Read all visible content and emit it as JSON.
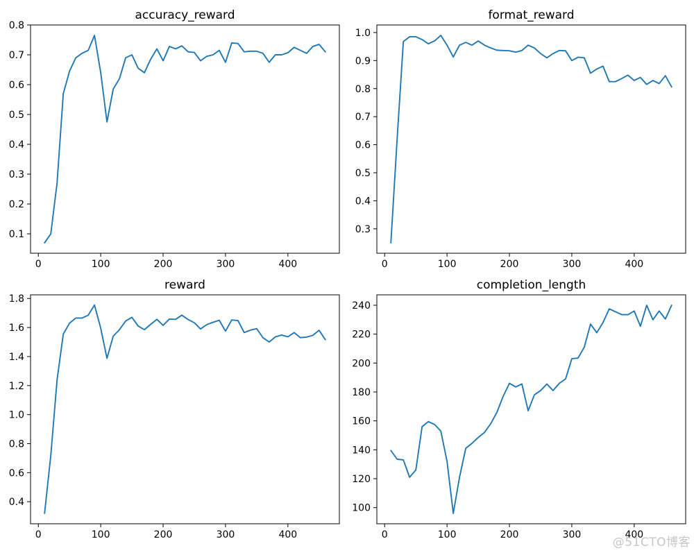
{
  "watermark": "@51CTO博客",
  "styles": {
    "line_color": "#1f77b4",
    "background": "#ffffff",
    "text_color": "#000000",
    "watermark_color": "#c6c6c6"
  },
  "chart_data": [
    {
      "type": "line",
      "title": "accuracy_reward",
      "xlabel": "",
      "ylabel": "",
      "grid": false,
      "legend": "none",
      "x": [
        10,
        20,
        30,
        40,
        50,
        60,
        70,
        80,
        90,
        100,
        110,
        120,
        130,
        140,
        150,
        160,
        170,
        180,
        190,
        200,
        210,
        220,
        230,
        240,
        250,
        260,
        270,
        280,
        290,
        300,
        310,
        320,
        330,
        340,
        350,
        360,
        370,
        380,
        390,
        400,
        410,
        420,
        430,
        440,
        450,
        460
      ],
      "values": [
        0.07,
        0.1,
        0.27,
        0.57,
        0.645,
        0.69,
        0.705,
        0.715,
        0.765,
        0.64,
        0.475,
        0.585,
        0.62,
        0.69,
        0.7,
        0.655,
        0.64,
        0.685,
        0.72,
        0.68,
        0.728,
        0.72,
        0.73,
        0.71,
        0.708,
        0.68,
        0.695,
        0.7,
        0.715,
        0.675,
        0.74,
        0.738,
        0.71,
        0.712,
        0.712,
        0.705,
        0.675,
        0.7,
        0.7,
        0.707,
        0.725,
        0.715,
        0.705,
        0.728,
        0.735,
        0.71
      ],
      "xlim": [
        -12.5,
        482.5
      ],
      "ylim": [
        0.035,
        0.8
      ],
      "xticks": [
        0,
        100,
        200,
        300,
        400
      ],
      "yticks": [
        0.1,
        0.2,
        0.3,
        0.4,
        0.5,
        0.6,
        0.7,
        0.8
      ],
      "ytick_decimals": 1
    },
    {
      "type": "line",
      "title": "format_reward",
      "xlabel": "",
      "ylabel": "",
      "grid": false,
      "legend": "none",
      "x": [
        10,
        20,
        30,
        40,
        50,
        60,
        70,
        80,
        90,
        100,
        110,
        120,
        130,
        140,
        150,
        160,
        170,
        180,
        190,
        200,
        210,
        220,
        230,
        240,
        250,
        260,
        270,
        280,
        290,
        300,
        310,
        320,
        330,
        340,
        350,
        360,
        370,
        380,
        390,
        400,
        410,
        420,
        430,
        440,
        450,
        460
      ],
      "values": [
        0.25,
        0.62,
        0.968,
        0.985,
        0.985,
        0.975,
        0.96,
        0.97,
        0.99,
        0.955,
        0.913,
        0.955,
        0.965,
        0.955,
        0.97,
        0.955,
        0.945,
        0.937,
        0.936,
        0.935,
        0.93,
        0.936,
        0.955,
        0.945,
        0.925,
        0.91,
        0.925,
        0.936,
        0.935,
        0.9,
        0.912,
        0.91,
        0.855,
        0.87,
        0.88,
        0.825,
        0.825,
        0.836,
        0.848,
        0.829,
        0.84,
        0.815,
        0.829,
        0.818,
        0.846,
        0.806
      ],
      "xlim": [
        -12.5,
        482.5
      ],
      "ylim": [
        0.213,
        1.027
      ],
      "xticks": [
        0,
        100,
        200,
        300,
        400
      ],
      "yticks": [
        0.3,
        0.4,
        0.5,
        0.6,
        0.7,
        0.8,
        0.9,
        1.0
      ],
      "ytick_decimals": 1
    },
    {
      "type": "line",
      "title": "reward",
      "xlabel": "",
      "ylabel": "",
      "grid": false,
      "legend": "none",
      "x": [
        10,
        20,
        30,
        40,
        50,
        60,
        70,
        80,
        90,
        100,
        110,
        120,
        130,
        140,
        150,
        160,
        170,
        180,
        190,
        200,
        210,
        220,
        230,
        240,
        250,
        260,
        270,
        280,
        290,
        300,
        310,
        320,
        330,
        340,
        350,
        360,
        370,
        380,
        390,
        400,
        410,
        420,
        430,
        440,
        450,
        460
      ],
      "values": [
        0.32,
        0.72,
        1.238,
        1.555,
        1.63,
        1.665,
        1.665,
        1.685,
        1.755,
        1.595,
        1.388,
        1.54,
        1.585,
        1.645,
        1.67,
        1.61,
        1.585,
        1.622,
        1.656,
        1.615,
        1.658,
        1.656,
        1.685,
        1.655,
        1.633,
        1.59,
        1.62,
        1.636,
        1.65,
        1.575,
        1.652,
        1.648,
        1.565,
        1.582,
        1.592,
        1.53,
        1.5,
        1.536,
        1.548,
        1.536,
        1.565,
        1.53,
        1.534,
        1.546,
        1.581,
        1.516
      ],
      "xlim": [
        -12.5,
        482.5
      ],
      "ylim": [
        0.248,
        1.825
      ],
      "xticks": [
        0,
        100,
        200,
        300,
        400
      ],
      "yticks": [
        0.4,
        0.6,
        0.8,
        1.0,
        1.2,
        1.4,
        1.6,
        1.8
      ],
      "ytick_decimals": 1
    },
    {
      "type": "line",
      "title": "completion_length",
      "xlabel": "",
      "ylabel": "",
      "grid": false,
      "legend": "none",
      "x": [
        10,
        20,
        30,
        40,
        50,
        60,
        70,
        80,
        90,
        100,
        110,
        120,
        130,
        140,
        150,
        160,
        170,
        180,
        190,
        200,
        210,
        220,
        230,
        240,
        250,
        260,
        270,
        280,
        290,
        300,
        310,
        320,
        330,
        340,
        350,
        360,
        370,
        380,
        390,
        400,
        410,
        420,
        430,
        440,
        450,
        460
      ],
      "values": [
        139.5,
        133.5,
        133,
        121,
        126,
        156,
        159.5,
        157.5,
        153,
        132,
        96,
        121,
        141,
        144.5,
        148.5,
        152,
        158,
        166,
        177,
        186,
        183.5,
        185.5,
        167,
        178,
        181,
        185.5,
        181,
        186,
        189,
        203,
        203.5,
        211,
        227,
        221,
        228,
        237.5,
        235.5,
        233.5,
        233.5,
        236,
        225.5,
        240,
        230,
        236,
        230.5,
        240
      ],
      "xlim": [
        -12.5,
        482.5
      ],
      "ylim": [
        88.8,
        247.2
      ],
      "xticks": [
        0,
        100,
        200,
        300,
        400
      ],
      "yticks": [
        100,
        120,
        140,
        160,
        180,
        200,
        220,
        240
      ],
      "ytick_decimals": 0
    }
  ]
}
